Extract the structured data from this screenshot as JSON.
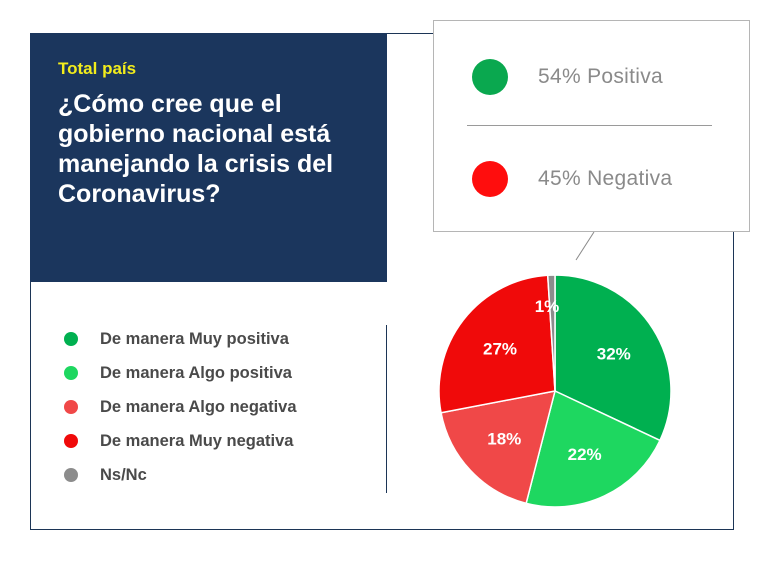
{
  "header": {
    "kicker": "Total país",
    "question": "¿Cómo cree que el gobierno nacional está manejando la crisis del Coronavirus?"
  },
  "summary": [
    {
      "label": "54% Positiva",
      "color": "#0aa84f"
    },
    {
      "label": "45% Negativa",
      "color": "#ff0d0d"
    }
  ],
  "chart_data": {
    "type": "pie",
    "categories": [
      "De manera Muy positiva",
      "De manera Algo positiva",
      "De manera Algo negativa",
      "De manera Muy negativa",
      "Ns/Nc"
    ],
    "values": [
      32,
      22,
      18,
      27,
      1
    ],
    "data_labels": [
      "32%",
      "22%",
      "18%",
      "27%",
      "1%"
    ],
    "colors": [
      "#00b050",
      "#1ed760",
      "#f04848",
      "#f00a0a",
      "#8c8c8c"
    ],
    "legend_position": "left"
  }
}
